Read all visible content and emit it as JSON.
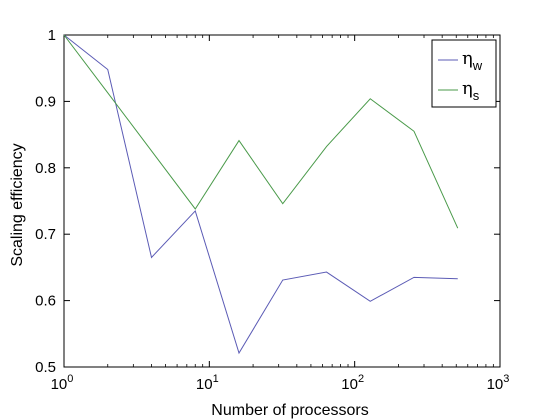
{
  "chart_data": {
    "type": "line",
    "xlabel": "Number of processors",
    "ylabel": "Scaling efficiency",
    "xscale": "log",
    "xlim": [
      1,
      1000
    ],
    "ylim": [
      0.5,
      1.0
    ],
    "xticks": [
      1,
      10,
      100,
      1000
    ],
    "xtick_labels": [
      {
        "base": "10",
        "exp": "0"
      },
      {
        "base": "10",
        "exp": "1"
      },
      {
        "base": "10",
        "exp": "2"
      },
      {
        "base": "10",
        "exp": "3"
      }
    ],
    "yticks": [
      0.5,
      0.6,
      0.7,
      0.8,
      0.9,
      1.0
    ],
    "ytick_labels": [
      "0.5",
      "0.6",
      "0.7",
      "0.8",
      "0.9",
      "1"
    ],
    "grid": false,
    "legend_position": "top-right",
    "series": [
      {
        "name": "η_w",
        "symbol": "η",
        "subscript": "w",
        "color": "#5b5bb5",
        "x": [
          1,
          2,
          4,
          8,
          16,
          32,
          64,
          128,
          256,
          512
        ],
        "y": [
          1.0,
          0.948,
          0.665,
          0.735,
          0.521,
          0.631,
          0.643,
          0.599,
          0.635,
          0.633
        ]
      },
      {
        "name": "η_s",
        "symbol": "η",
        "subscript": "s",
        "color": "#4a9a4a",
        "x": [
          1,
          2,
          8,
          16,
          32,
          64,
          128,
          256,
          512
        ],
        "y": [
          1.0,
          0.913,
          0.738,
          0.841,
          0.746,
          0.832,
          0.904,
          0.855,
          0.709
        ]
      }
    ]
  }
}
